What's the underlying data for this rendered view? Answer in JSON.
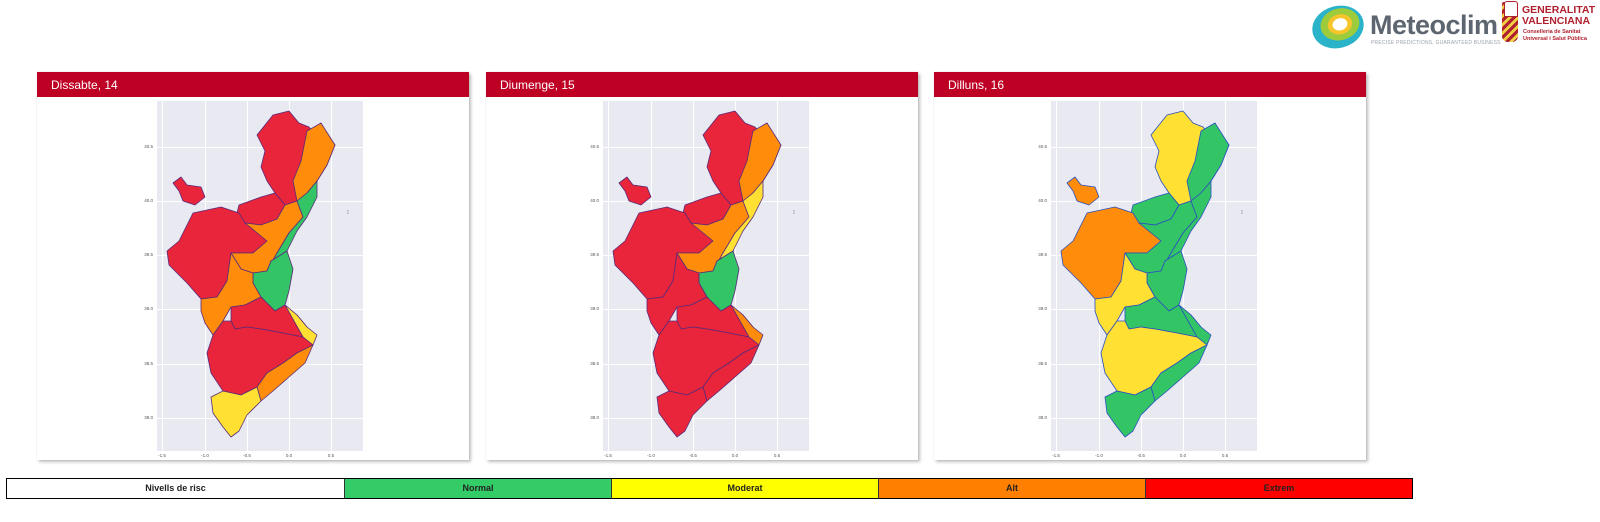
{
  "header": {
    "meteoclim": {
      "name": "Meteoclim",
      "tagline": "PRECISE PREDICTIONS, GUARANTEED BUSINESS"
    },
    "generalitat": {
      "line1": "GENERALITAT",
      "line2": "VALENCIANA",
      "sub1": "Conselleria de Sanitat",
      "sub2": "Universal i Salut Pública"
    }
  },
  "panels": [
    {
      "title": "Dissabte, 14",
      "dominant_risk": "Extrem"
    },
    {
      "title": "Diumenge, 15",
      "dominant_risk": "Extrem"
    },
    {
      "title": "Dilluns, 16",
      "dominant_risk": "Normal"
    }
  ],
  "axes": {
    "x_ticks": [
      "-1.5",
      "-1.0",
      "-0.5",
      "0.0",
      "0.5"
    ],
    "y_ticks": [
      "40.5",
      "40.0",
      "39.5",
      "39.0",
      "38.5",
      "38.0"
    ]
  },
  "legend": {
    "title": "Nivells de risc",
    "levels": [
      {
        "label": "Normal",
        "color": "#33cc66"
      },
      {
        "label": "Moderat",
        "color": "#ffff00"
      },
      {
        "label": "Alt",
        "color": "#ff8000"
      },
      {
        "label": "Extrem",
        "color": "#ff0000"
      }
    ]
  },
  "colors": {
    "header_red": "#bd0023",
    "map_extrem": "#e8253a",
    "map_alt": "#ff8c0a",
    "map_moderat": "#ffe033",
    "map_normal": "#33c466",
    "plot_bg": "#e9e9f2"
  }
}
